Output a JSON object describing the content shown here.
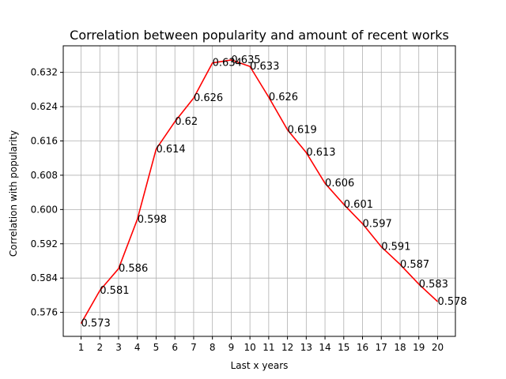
{
  "chart_data": {
    "type": "line",
    "title": "Correlation between popularity and amount of recent works",
    "xlabel": "Last x years",
    "ylabel": "Correlation with popularity",
    "x": [
      1,
      2,
      3,
      4,
      5,
      6,
      7,
      8,
      9,
      10,
      11,
      12,
      13,
      14,
      15,
      16,
      17,
      18,
      19,
      20
    ],
    "y": [
      0.5734,
      0.5811,
      0.5862,
      0.5977,
      0.6141,
      0.6205,
      0.626,
      0.6342,
      0.6349,
      0.6334,
      0.6262,
      0.6186,
      0.6133,
      0.6061,
      0.6012,
      0.5967,
      0.5913,
      0.5872,
      0.5826,
      0.5785
    ],
    "labels": [
      "0.573",
      "0.581",
      "0.586",
      "0.598",
      "0.614",
      "0.62",
      "0.626",
      "0.634",
      "0.635",
      "0.633",
      "0.626",
      "0.619",
      "0.613",
      "0.606",
      "0.601",
      "0.597",
      "0.591",
      "0.587",
      "0.583",
      "0.578"
    ],
    "yticks": [
      0.576,
      0.584,
      0.592,
      0.6,
      0.608,
      0.616,
      0.624,
      0.632
    ],
    "ytick_labels": [
      "0.576",
      "0.584",
      "0.592",
      "0.600",
      "0.608",
      "0.616",
      "0.624",
      "0.632"
    ],
    "xlim": [
      0.05,
      20.95
    ],
    "ylim": [
      0.5704,
      0.6382
    ],
    "grid": true,
    "line_color": "#ff0000",
    "grid_color": "#b0b0b0"
  }
}
